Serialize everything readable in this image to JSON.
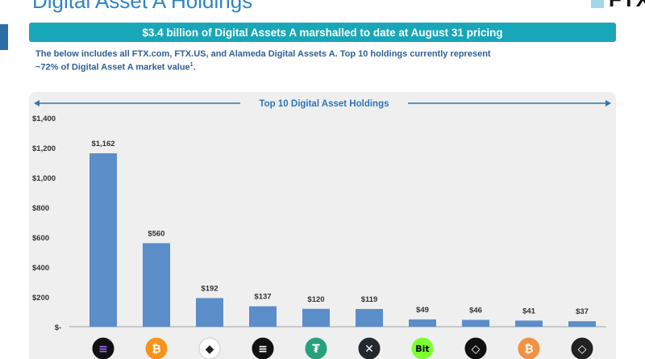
{
  "header": {
    "title": "Digital Asset A Holdings",
    "logo_text": "FTX"
  },
  "banner": {
    "text": "$3.4 billion of Digital Assets A marshalled to date at August 31 pricing"
  },
  "subtext": {
    "line1": "The below includes all FTX.com, FTX.US, and Alameda Digital Assets A. Top 10 holdings currently represent",
    "line2": "~72% of Digital Asset A market value",
    "footnote_ref": "1"
  },
  "chart_data": {
    "type": "bar",
    "title": "Top 10 Digital Asset Holdings",
    "categories": [
      "",
      "",
      "",
      "",
      "",
      "",
      "",
      "",
      "",
      ""
    ],
    "values": [
      1162,
      560,
      192,
      137,
      120,
      119,
      49,
      46,
      41,
      37
    ],
    "value_labels": [
      "$1,162",
      "$560",
      "$192",
      "$137",
      "$120",
      "$119",
      "$49",
      "$46",
      "$41",
      "$37"
    ],
    "y_ticks": [
      0,
      200,
      400,
      600,
      800,
      1000,
      1200,
      1400
    ],
    "y_tick_labels": [
      "$-",
      "$200",
      "$400",
      "$600",
      "$800",
      "$1,000",
      "$1,200",
      "$1,400"
    ],
    "ylim": [
      0,
      1400
    ],
    "bar_color": "#5b8dc9",
    "icons": [
      {
        "name": "solana-icon",
        "bg": "#111111",
        "glyph": "≡",
        "color": "#9b6bff"
      },
      {
        "name": "bitcoin-icon",
        "bg": "#f7931a",
        "glyph": "₿",
        "color": "#ffffff"
      },
      {
        "name": "ethereum-icon",
        "bg": "#ffffff",
        "glyph": "◆",
        "color": "#222222"
      },
      {
        "name": "aptos-icon",
        "bg": "#111111",
        "glyph": "≡",
        "color": "#ffffff"
      },
      {
        "name": "tether-icon",
        "bg": "#26a17b",
        "glyph": "₮",
        "color": "#ffffff"
      },
      {
        "name": "xrp-icon",
        "bg": "#23292f",
        "glyph": "✕",
        "color": "#ffffff"
      },
      {
        "name": "bitdao-icon",
        "bg": "#7cff2e",
        "glyph": "Bit",
        "color": "#000000"
      },
      {
        "name": "near-icon",
        "bg": "#111111",
        "glyph": "◇",
        "color": "#ffffff"
      },
      {
        "name": "wrapped-bitcoin-icon",
        "bg": "#f09242",
        "glyph": "₿",
        "color": "#ffffff"
      },
      {
        "name": "wrapped-ether-icon",
        "bg": "#222222",
        "glyph": "◇",
        "color": "#ffffff"
      }
    ]
  }
}
